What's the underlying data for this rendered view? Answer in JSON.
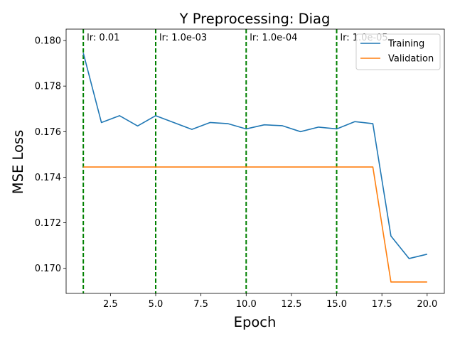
{
  "chart_data": {
    "type": "line",
    "title": "Y Preprocessing: Diag",
    "xlabel": "Epoch",
    "ylabel": "MSE Loss",
    "xlim": [
      0.05,
      20.95
    ],
    "ylim": [
      0.1689,
      0.1805
    ],
    "xticks": [
      2.5,
      5.0,
      7.5,
      10.0,
      12.5,
      15.0,
      17.5,
      20.0
    ],
    "xtick_labels": [
      "2.5",
      "5.0",
      "7.5",
      "10.0",
      "12.5",
      "15.0",
      "17.5",
      "20.0"
    ],
    "yticks": [
      0.17,
      0.172,
      0.174,
      0.176,
      0.178,
      0.18
    ],
    "ytick_labels": [
      "0.170",
      "0.172",
      "0.174",
      "0.176",
      "0.178",
      "0.180"
    ],
    "grid": false,
    "legend_position": "top-right",
    "x": [
      1,
      2,
      3,
      4,
      5,
      6,
      7,
      8,
      9,
      10,
      11,
      12,
      13,
      14,
      15,
      16,
      17,
      18,
      19,
      20
    ],
    "series": [
      {
        "name": "Training",
        "color": "#1f77b4",
        "values": [
          0.17945,
          0.1764,
          0.1767,
          0.17625,
          0.1767,
          0.1764,
          0.1761,
          0.1764,
          0.17635,
          0.17612,
          0.1763,
          0.17626,
          0.176,
          0.1762,
          0.17612,
          0.17644,
          0.17635,
          0.17142,
          0.17043,
          0.17062
        ]
      },
      {
        "name": "Validation",
        "color": "#ff7f0e",
        "values": [
          0.17445,
          0.17445,
          0.17445,
          0.17445,
          0.17445,
          0.17445,
          0.17445,
          0.17445,
          0.17445,
          0.17445,
          0.17445,
          0.17445,
          0.17445,
          0.17445,
          0.17445,
          0.17445,
          0.17445,
          0.1694,
          0.1694,
          0.1694
        ]
      }
    ],
    "vlines": [
      {
        "x": 1,
        "label": "lr: 0.01",
        "color": "#008000"
      },
      {
        "x": 5,
        "label": "lr: 1.0e-03",
        "color": "#008000"
      },
      {
        "x": 10,
        "label": "lr: 1.0e-04",
        "color": "#008000"
      },
      {
        "x": 15,
        "label": "lr: 1.0e-05",
        "color": "#008000"
      }
    ]
  }
}
